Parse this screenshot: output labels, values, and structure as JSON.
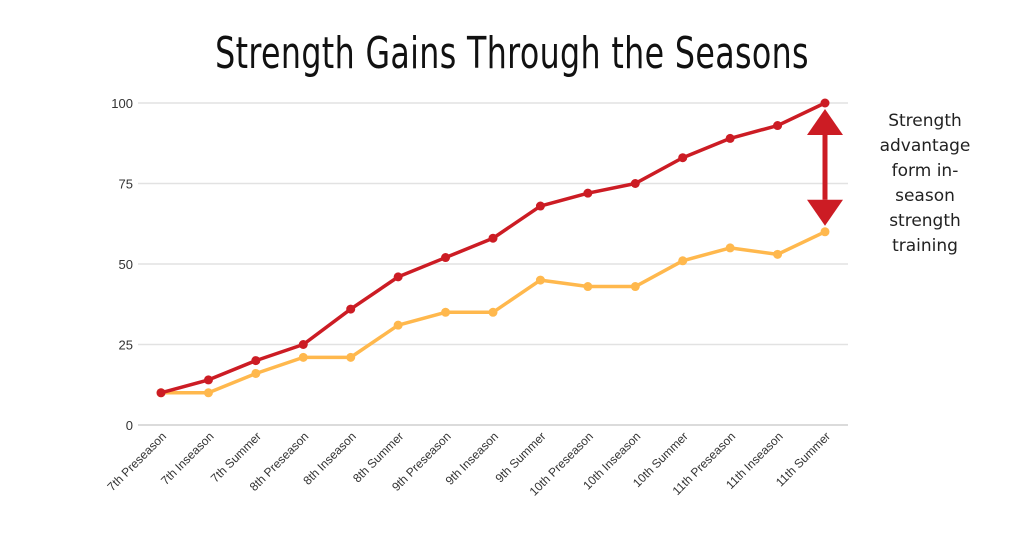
{
  "chart_data": {
    "type": "line",
    "title": "Strength Gains Through the Seasons",
    "categories": [
      "7th Preseason",
      "7th Inseason",
      "7th Summer",
      "8th Preseason",
      "8th Inseason",
      "8th Summer",
      "9th Preseason",
      "9th Inseason",
      "9th Summer",
      "10th Preseason",
      "10th Inseason",
      "10th Summer",
      "11th Preseason",
      "11th Inseason",
      "11th Summer"
    ],
    "series": [
      {
        "color": "#cc1c24",
        "values": [
          10,
          14,
          20,
          25,
          36,
          46,
          52,
          58,
          68,
          72,
          75,
          83,
          89,
          93,
          100
        ]
      },
      {
        "color": "#ffb84d",
        "values": [
          10,
          10,
          16,
          21,
          21,
          31,
          35,
          35,
          45,
          43,
          43,
          51,
          55,
          53,
          60
        ]
      }
    ],
    "ylim": [
      0,
      100
    ],
    "yticks": [
      0,
      25,
      50,
      75,
      100
    ],
    "grid": true,
    "annotation": {
      "text": "Strength advantage form in-season strength training",
      "arrow": "double-headed",
      "color": "#cc1c24",
      "from": 60,
      "to": 100
    }
  }
}
